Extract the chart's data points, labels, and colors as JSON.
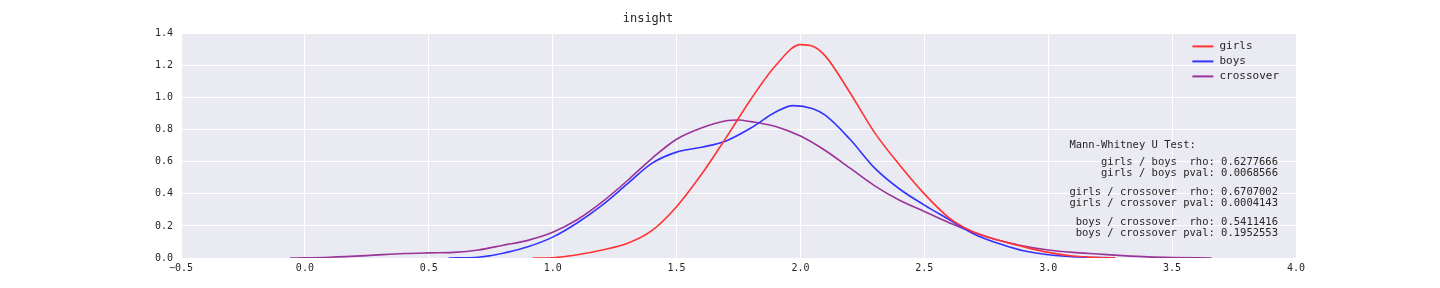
{
  "chart_data": {
    "type": "line",
    "title": "insight",
    "xlim": [
      -0.5,
      4.0
    ],
    "xticks": [
      {
        "value": -0.5,
        "label": "−0.5"
      },
      {
        "value": 0,
        "label": "0.0"
      },
      {
        "value": 0.5,
        "label": "0.5"
      },
      {
        "value": 1,
        "label": "1.0"
      },
      {
        "value": 1.5,
        "label": "1.5"
      },
      {
        "value": 2,
        "label": "2.0"
      },
      {
        "value": 2.5,
        "label": "2.5"
      },
      {
        "value": 3,
        "label": "3.0"
      },
      {
        "value": 3.5,
        "label": "3.5"
      },
      {
        "value": 4,
        "label": "4.0"
      }
    ],
    "ylim": [
      0,
      1.4
    ],
    "yticks": [
      {
        "value": 0,
        "label": "0.0"
      },
      {
        "value": 0.2,
        "label": "0.2"
      },
      {
        "value": 0.4,
        "label": "0.4"
      },
      {
        "value": 0.6,
        "label": "0.6"
      },
      {
        "value": 0.8,
        "label": "0.8"
      },
      {
        "value": 1,
        "label": "1.0"
      },
      {
        "value": 1.2,
        "label": "1.2"
      },
      {
        "value": 1.4,
        "label": "1.4"
      }
    ],
    "grid": true,
    "legend": "top right",
    "marker": "none",
    "line_style": "solid",
    "series": [
      {
        "name": "girls",
        "color": "#ff3333",
        "x": [
          0.92,
          1.0,
          1.1,
          1.2,
          1.3,
          1.4,
          1.5,
          1.6,
          1.7,
          1.8,
          1.9,
          2.0,
          2.05,
          2.1,
          2.2,
          2.3,
          2.4,
          2.5,
          2.6,
          2.7,
          2.8,
          2.9,
          3.0,
          3.1,
          3.2,
          3.27
        ],
        "values": [
          0,
          0.002,
          0.02,
          0.05,
          0.09,
          0.17,
          0.32,
          0.52,
          0.75,
          0.99,
          1.2,
          1.33,
          1.32,
          1.26,
          1.03,
          0.78,
          0.58,
          0.4,
          0.25,
          0.16,
          0.11,
          0.07,
          0.035,
          0.012,
          0.003,
          0
        ]
      },
      {
        "name": "boys",
        "color": "#3333ff",
        "x": [
          0.58,
          0.7,
          0.8,
          0.9,
          1.0,
          1.1,
          1.2,
          1.3,
          1.4,
          1.5,
          1.6,
          1.7,
          1.8,
          1.9,
          1.97,
          2.05,
          2.1,
          2.2,
          2.3,
          2.4,
          2.5,
          2.6,
          2.7,
          2.8,
          2.9,
          3.0,
          3.1,
          3.27
        ],
        "values": [
          0,
          0.005,
          0.03,
          0.07,
          0.13,
          0.22,
          0.33,
          0.46,
          0.59,
          0.66,
          0.69,
          0.73,
          0.81,
          0.91,
          0.95,
          0.93,
          0.89,
          0.74,
          0.56,
          0.43,
          0.33,
          0.24,
          0.15,
          0.09,
          0.045,
          0.02,
          0.008,
          0
        ]
      },
      {
        "name": "crossover",
        "color": "#993399",
        "x": [
          -0.06,
          0.1,
          0.25,
          0.4,
          0.5,
          0.6,
          0.7,
          0.8,
          0.9,
          1.0,
          1.1,
          1.2,
          1.3,
          1.4,
          1.5,
          1.6,
          1.7,
          1.75,
          1.8,
          1.9,
          2.0,
          2.1,
          2.2,
          2.3,
          2.4,
          2.5,
          2.6,
          2.7,
          2.8,
          2.9,
          3.0,
          3.1,
          3.2,
          3.3,
          3.4,
          3.5,
          3.66
        ],
        "values": [
          0,
          0.005,
          0.015,
          0.028,
          0.032,
          0.035,
          0.05,
          0.08,
          0.11,
          0.16,
          0.24,
          0.35,
          0.48,
          0.62,
          0.74,
          0.81,
          0.855,
          0.86,
          0.85,
          0.82,
          0.76,
          0.67,
          0.56,
          0.45,
          0.36,
          0.29,
          0.22,
          0.16,
          0.11,
          0.075,
          0.05,
          0.035,
          0.025,
          0.015,
          0.007,
          0.003,
          0
        ]
      }
    ],
    "annotations": [
      "Mann-Whitney U Test:",
      "girls / boys  rho: 0.6277666",
      "girls / boys pval: 0.0068566",
      "girls / crossover  rho: 0.6707002",
      "girls / crossover pval: 0.0004143",
      "boys / crossover  rho: 0.5411416",
      "boys / crossover pval: 0.1952553"
    ]
  }
}
